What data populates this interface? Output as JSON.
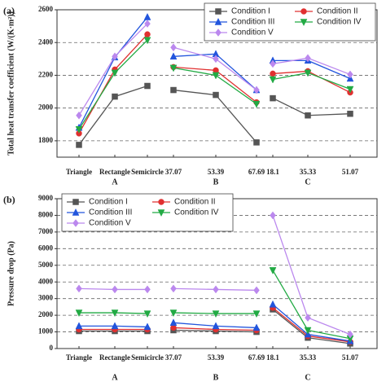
{
  "chart_data": [
    {
      "type": "line",
      "panel": "(a)",
      "ylabel": "Total heat transfer coefficient (W/(K·m²))",
      "categories": [
        "Triangle",
        "Rectangle",
        "Semicircle",
        "37.07",
        "53.39",
        "67.69",
        "18.1",
        "35.33",
        "51.07"
      ],
      "groups": [
        "A",
        "B",
        "C"
      ],
      "ylim": [
        1700,
        2600
      ],
      "yticks": [
        1800,
        2000,
        2200,
        2400,
        2600
      ],
      "grid": true,
      "legend": "upper right",
      "series": [
        {
          "name": "Condition I",
          "color": "#555555",
          "marker": "square",
          "values": [
            1775,
            2070,
            2135,
            2110,
            2080,
            1790,
            2060,
            1955,
            1965
          ]
        },
        {
          "name": "Condition II",
          "color": "#e03030",
          "marker": "circle",
          "values": [
            1845,
            2235,
            2450,
            2250,
            2230,
            2035,
            2210,
            2225,
            2095
          ]
        },
        {
          "name": "Condition III",
          "color": "#2255dd",
          "marker": "triangle-up",
          "values": [
            1880,
            2310,
            2555,
            2315,
            2330,
            2110,
            2290,
            2290,
            2180
          ]
        },
        {
          "name": "Condition IV",
          "color": "#22aa44",
          "marker": "triangle-down",
          "values": [
            1870,
            2215,
            2415,
            2245,
            2200,
            2025,
            2175,
            2215,
            2115
          ]
        },
        {
          "name": "Condition V",
          "color": "#bb88ee",
          "marker": "diamond",
          "values": [
            1955,
            2315,
            2515,
            2370,
            2300,
            2110,
            2270,
            2305,
            2205
          ]
        }
      ]
    },
    {
      "type": "line",
      "panel": "(b)",
      "ylabel": "Pressure drop (Pa)",
      "categories": [
        "Triangle",
        "Rectangle",
        "Semicircle",
        "37.07",
        "53.39",
        "67.69",
        "18.1",
        "35.33",
        "51.07"
      ],
      "groups": [
        "A",
        "B",
        "C"
      ],
      "ylim": [
        0,
        9000
      ],
      "yticks": [
        0,
        1000,
        2000,
        3000,
        4000,
        5000,
        6000,
        7000,
        8000,
        9000
      ],
      "grid": true,
      "legend": "upper left",
      "series": [
        {
          "name": "Condition I",
          "color": "#555555",
          "marker": "square",
          "values": [
            1050,
            1050,
            1050,
            1100,
            1050,
            1000,
            2350,
            650,
            300
          ]
        },
        {
          "name": "Condition II",
          "color": "#e03030",
          "marker": "circle",
          "values": [
            1150,
            1150,
            1150,
            1250,
            1150,
            1100,
            2450,
            750,
            400
          ]
        },
        {
          "name": "Condition III",
          "color": "#2255dd",
          "marker": "triangle-up",
          "values": [
            1350,
            1350,
            1300,
            1550,
            1350,
            1250,
            2650,
            850,
            450
          ]
        },
        {
          "name": "Condition IV",
          "color": "#22aa44",
          "marker": "triangle-down",
          "values": [
            2150,
            2150,
            2100,
            2150,
            2100,
            2100,
            4700,
            1100,
            600
          ]
        },
        {
          "name": "Condition V",
          "color": "#bb88ee",
          "marker": "diamond",
          "values": [
            3600,
            3550,
            3550,
            3600,
            3550,
            3500,
            8000,
            1850,
            850
          ]
        }
      ]
    }
  ]
}
